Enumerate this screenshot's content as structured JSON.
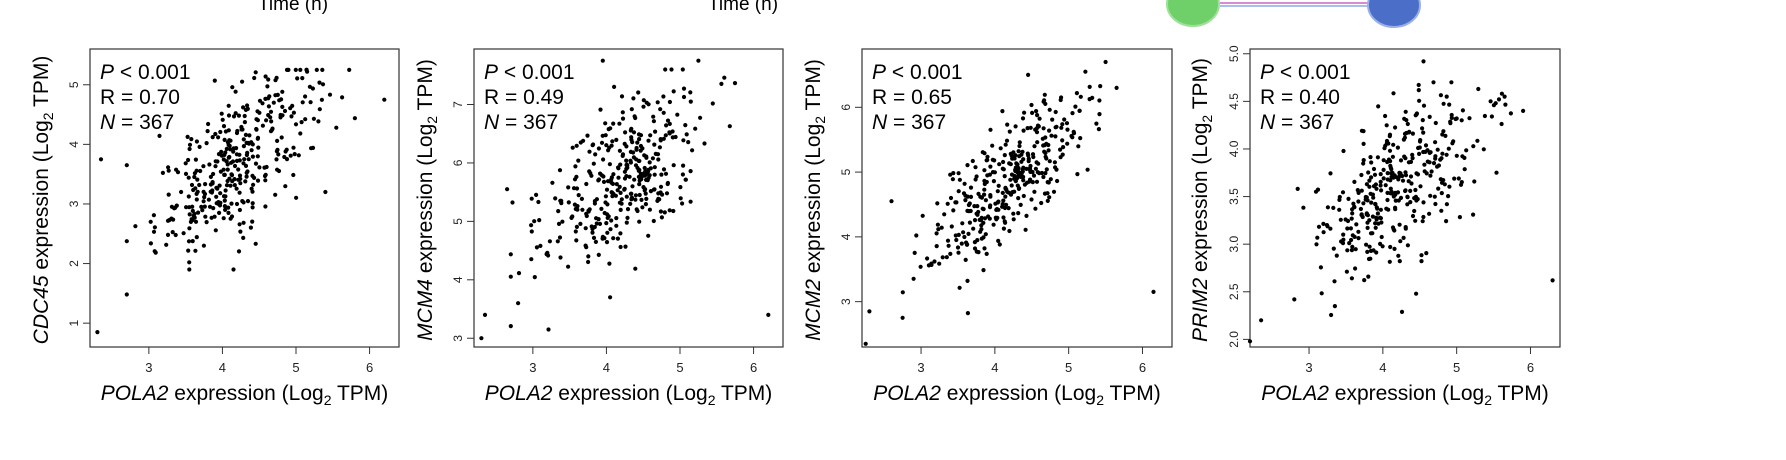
{
  "top_fragments": {
    "time_label_1": "Time (h)",
    "time_label_2": "Time (h)"
  },
  "chart_data": [
    {
      "type": "scatter",
      "xlabel_gene": "POLA2",
      "xlabel_rest": " expression (Log",
      "xlabel_sub": "2",
      "xlabel_end": " TPM)",
      "ylabel_gene": "CDC45",
      "ylabel_rest": " expression (Log",
      "ylabel_sub": "2",
      "ylabel_end": " TPM)",
      "xlim": [
        2.2,
        6.4
      ],
      "ylim": [
        0.6,
        5.6
      ],
      "xticks": [
        "3",
        "4",
        "5",
        "6"
      ],
      "yticks": [
        "1",
        "2",
        "3",
        "4",
        "5"
      ],
      "stats": {
        "p": "P",
        "p_text": " < 0.001",
        "r": "R = 0.70",
        "n": "N",
        "n_text": " = 367"
      },
      "n_points": 367,
      "slope": 1.05,
      "x_mean": 4.2,
      "y_mean": 3.75,
      "x_sd": 0.55,
      "noise_sd": 0.55,
      "outliers": [
        [
          2.3,
          0.85
        ],
        [
          2.35,
          3.75
        ],
        [
          6.2,
          4.75
        ],
        [
          5.4,
          3.2
        ],
        [
          4.15,
          1.9
        ],
        [
          3.55,
          1.9
        ],
        [
          2.7,
          3.65
        ]
      ]
    },
    {
      "type": "scatter",
      "xlabel_gene": "POLA2",
      "xlabel_rest": " expression (Log",
      "xlabel_sub": "2",
      "xlabel_end": " TPM)",
      "ylabel_gene": "MCM4",
      "ylabel_rest": " expression (Log",
      "ylabel_sub": "2",
      "ylabel_end": " TPM)",
      "xlim": [
        2.2,
        6.4
      ],
      "ylim": [
        2.85,
        7.95
      ],
      "xticks": [
        "3",
        "4",
        "5",
        "6"
      ],
      "yticks": [
        "3",
        "4",
        "5",
        "6",
        "7"
      ],
      "stats": {
        "p": "P",
        "p_text": " < 0.001",
        "r": "R = 0.49",
        "n": "N",
        "n_text": " = 367"
      },
      "n_points": 367,
      "slope": 0.7,
      "x_mean": 4.2,
      "y_mean": 5.75,
      "x_sd": 0.55,
      "noise_sd": 0.65,
      "outliers": [
        [
          2.3,
          3.0
        ],
        [
          2.35,
          3.4
        ],
        [
          2.8,
          3.6
        ],
        [
          6.2,
          3.4
        ],
        [
          4.05,
          3.7
        ],
        [
          3.95,
          7.75
        ],
        [
          5.25,
          7.75
        ],
        [
          2.65,
          5.55
        ]
      ]
    },
    {
      "type": "scatter",
      "xlabel_gene": "POLA2",
      "xlabel_rest": " expression (Log",
      "xlabel_sub": "2",
      "xlabel_end": " TPM)",
      "ylabel_gene": "MCM2",
      "ylabel_rest": " expression (Log",
      "ylabel_sub": "2",
      "ylabel_end": " TPM)",
      "xlim": [
        2.2,
        6.4
      ],
      "ylim": [
        2.3,
        6.9
      ],
      "xticks": [
        "3",
        "4",
        "5",
        "6"
      ],
      "yticks": [
        "3",
        "4",
        "5",
        "6"
      ],
      "stats": {
        "p": "P",
        "p_text": " < 0.001",
        "r": "R = 0.65",
        "n": "N",
        "n_text": " = 367"
      },
      "n_points": 367,
      "slope": 0.95,
      "x_mean": 4.2,
      "y_mean": 4.85,
      "x_sd": 0.55,
      "noise_sd": 0.45,
      "outliers": [
        [
          2.25,
          2.35
        ],
        [
          2.3,
          2.85
        ],
        [
          2.75,
          2.75
        ],
        [
          6.15,
          3.15
        ],
        [
          5.5,
          6.7
        ],
        [
          5.65,
          6.3
        ],
        [
          4.45,
          6.5
        ],
        [
          2.6,
          4.55
        ]
      ]
    },
    {
      "type": "scatter",
      "xlabel_gene": "POLA2",
      "xlabel_rest": " expression (Log",
      "xlabel_sub": "2",
      "xlabel_end": " TPM)",
      "ylabel_gene": "PRIM2",
      "ylabel_rest": " expression (Log",
      "ylabel_sub": "2",
      "ylabel_end": " TPM)",
      "xlim": [
        2.2,
        6.4
      ],
      "ylim": [
        1.92,
        5.05
      ],
      "xticks": [
        "3",
        "4",
        "5",
        "6"
      ],
      "yticks": [
        "2.0",
        "2.5",
        "3.0",
        "3.5",
        "4.0",
        "4.5",
        "5.0"
      ],
      "stats": {
        "p": "P",
        "p_text": " < 0.001",
        "r": "R = 0.40",
        "n": "N",
        "n_text": " = 367"
      },
      "n_points": 367,
      "slope": 0.48,
      "x_mean": 4.2,
      "y_mean": 3.6,
      "x_sd": 0.55,
      "noise_sd": 0.4,
      "outliers": [
        [
          2.2,
          1.98
        ],
        [
          2.35,
          2.2
        ],
        [
          2.8,
          2.42
        ],
        [
          3.35,
          2.35
        ],
        [
          4.45,
          2.48
        ],
        [
          6.3,
          2.62
        ],
        [
          4.55,
          4.92
        ],
        [
          5.9,
          4.4
        ],
        [
          5.65,
          4.55
        ]
      ]
    }
  ]
}
